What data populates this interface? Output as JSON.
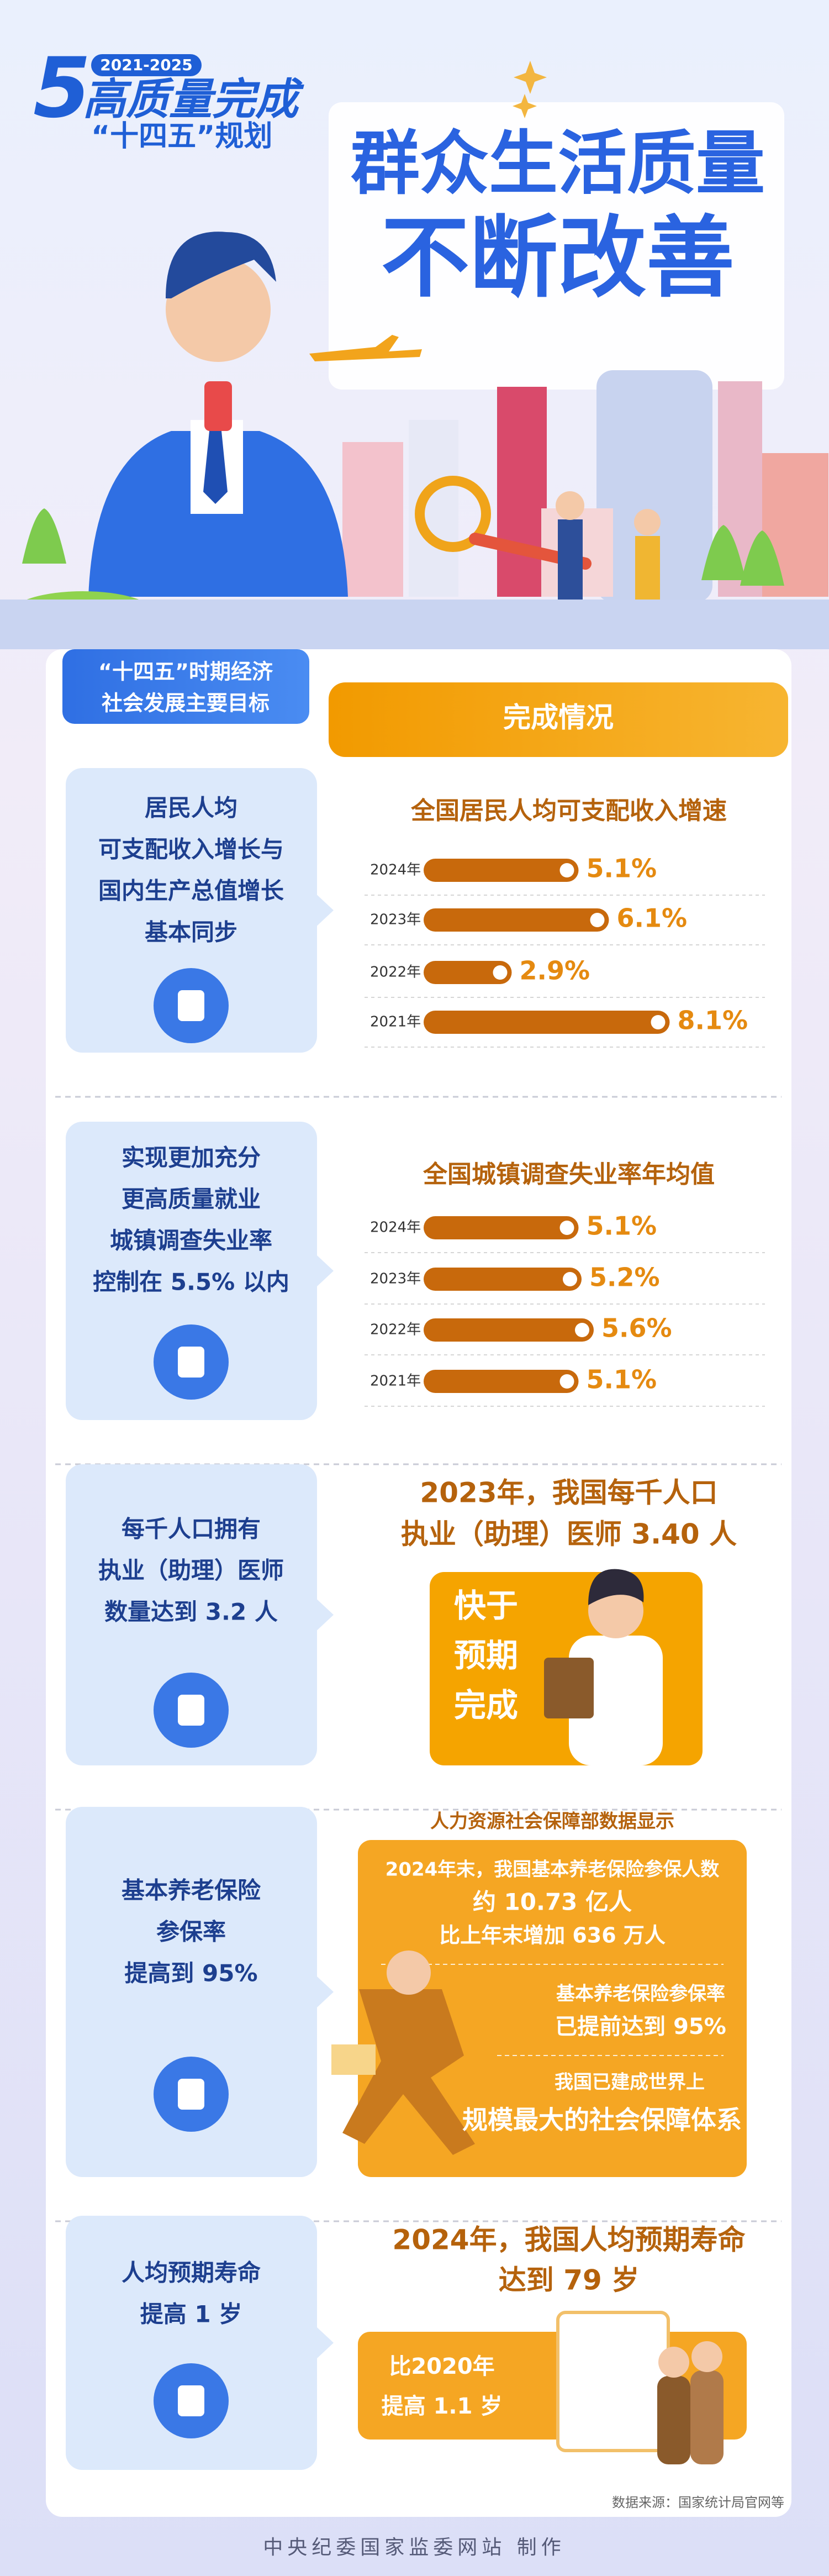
{
  "header": {
    "logo_numeral": "5",
    "logo_years": "2021-2025",
    "logo_main": "高质量完成",
    "logo_sub": "“十四五”规划",
    "title_lines": [
      "群众生活质量",
      "不断改善"
    ]
  },
  "tabs": {
    "goals": [
      "“十四五”时期经济",
      "社会发展主要目标"
    ],
    "results": "完成情况"
  },
  "sections": [
    {
      "goal": [
        "居民人均",
        "可支配收入增长与",
        "国内生产总值增长",
        "基本同步"
      ],
      "chart": {
        "title": "全国居民人均可支配收入增速",
        "categories": [
          "2024年",
          "2023年",
          "2022年",
          "2021年"
        ],
        "values": [
          5.1,
          6.1,
          2.9,
          8.1
        ],
        "value_labels": [
          "5.1%",
          "6.1%",
          "2.9%",
          "8.1%"
        ]
      }
    },
    {
      "goal": [
        "实现更加充分",
        "更高质量就业",
        "城镇调查失业率",
        "控制在 5.5% 以内"
      ],
      "chart": {
        "title": "全国城镇调查失业率年均值",
        "categories": [
          "2024年",
          "2023年",
          "2022年",
          "2021年"
        ],
        "values": [
          5.1,
          5.2,
          5.6,
          5.1
        ],
        "value_labels": [
          "5.1%",
          "5.2%",
          "5.6%",
          "5.1%"
        ]
      }
    },
    {
      "goal": [
        "每千人口拥有",
        "执业（助理）医师",
        "数量达到 3.2 人"
      ],
      "result": [
        "2023年，我国每千人口",
        "执业（助理）医师 3.40 人"
      ],
      "badge": [
        "快于",
        "预期",
        "完成"
      ]
    },
    {
      "goal": [
        "基本养老保险",
        "参保率",
        "提高到 95%"
      ],
      "note": "人力资源社会保障部数据显示",
      "box": [
        "2024年末，我国基本养老保险参保人数",
        "约 10.73 亿人",
        "比上年末增加 636 万人",
        "基本养老保险参保率",
        "已提前达到 95%",
        "我国已建成世界上",
        "规模最大的社会保障体系"
      ]
    },
    {
      "goal": [
        "人均预期寿命",
        "提高 1 岁"
      ],
      "result": [
        "2024年，我国人均预期寿命",
        "达到 79 岁"
      ],
      "box": [
        "比2020年",
        "提高 1.1 岁"
      ]
    }
  ],
  "source": "数据来源：国家统计局官网等",
  "footer": "中央纪委国家监委网站 制作"
}
